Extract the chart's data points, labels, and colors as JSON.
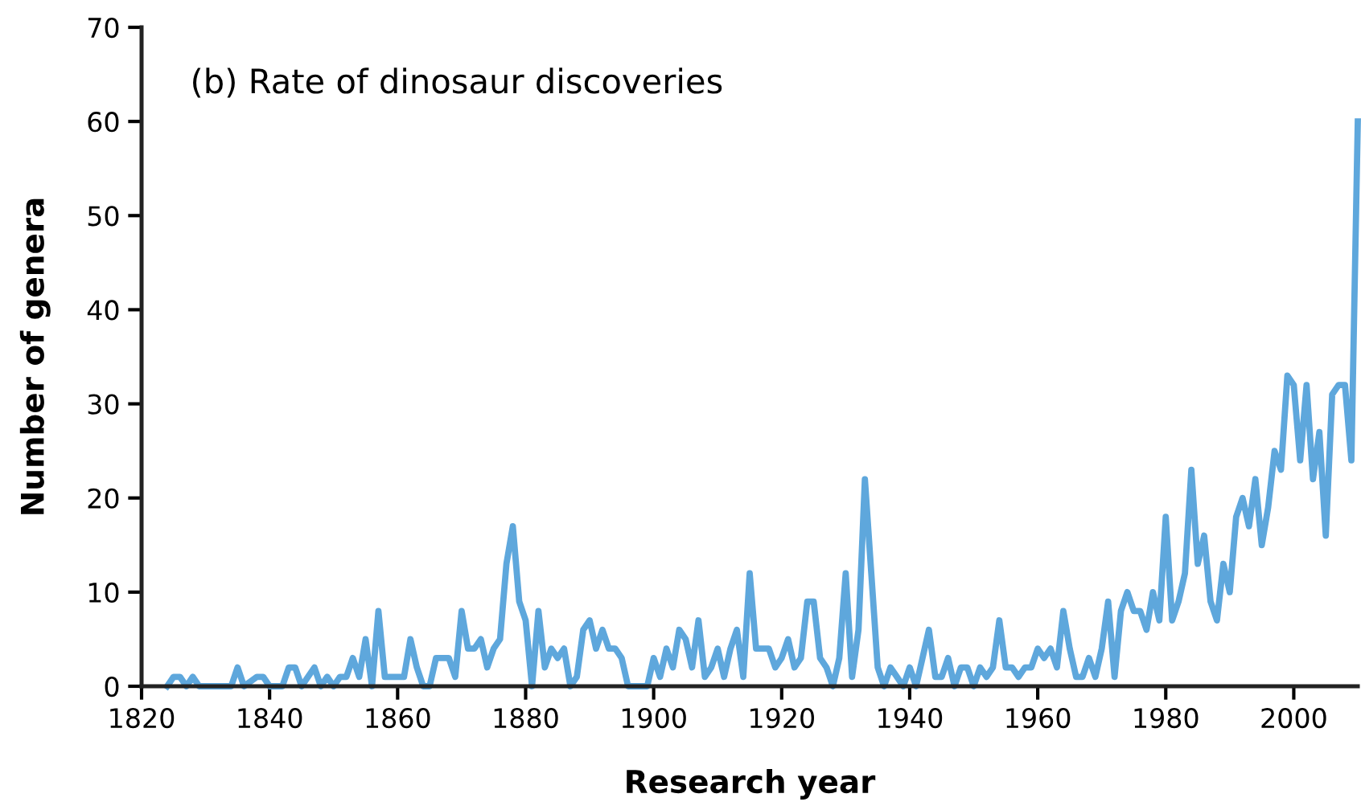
{
  "chart_data": {
    "type": "line",
    "title": "(b) Rate of dinosaur discoveries",
    "xlabel": "Research year",
    "ylabel": "Number of genera",
    "x": [
      1824,
      1825,
      1826,
      1827,
      1828,
      1829,
      1834,
      1835,
      1836,
      1838,
      1839,
      1840,
      1842,
      1843,
      1844,
      1845,
      1847,
      1848,
      1849,
      1850,
      1851,
      1852,
      1853,
      1854,
      1855,
      1856,
      1857,
      1858,
      1859,
      1861,
      1862,
      1863,
      1864,
      1865,
      1866,
      1868,
      1869,
      1870,
      1871,
      1872,
      1873,
      1874,
      1875,
      1876,
      1877,
      1878,
      1879,
      1880,
      1881,
      1882,
      1883,
      1884,
      1885,
      1886,
      1887,
      1888,
      1889,
      1890,
      1891,
      1892,
      1893,
      1894,
      1895,
      1896,
      1899,
      1900,
      1901,
      1902,
      1903,
      1904,
      1905,
      1906,
      1907,
      1908,
      1909,
      1910,
      1911,
      1912,
      1913,
      1914,
      1915,
      1916,
      1917,
      1918,
      1919,
      1920,
      1921,
      1922,
      1923,
      1924,
      1925,
      1926,
      1927,
      1928,
      1929,
      1930,
      1931,
      1932,
      1933,
      1934,
      1935,
      1936,
      1937,
      1938,
      1939,
      1940,
      1941,
      1942,
      1943,
      1944,
      1945,
      1946,
      1947,
      1948,
      1949,
      1950,
      1951,
      1952,
      1953,
      1954,
      1955,
      1956,
      1957,
      1958,
      1959,
      1960,
      1961,
      1962,
      1963,
      1964,
      1965,
      1966,
      1967,
      1968,
      1969,
      1970,
      1971,
      1972,
      1973,
      1974,
      1975,
      1976,
      1977,
      1978,
      1979,
      1980,
      1981,
      1982,
      1983,
      1984,
      1985,
      1986,
      1987,
      1988,
      1989,
      1990,
      1991,
      1992,
      1993,
      1994,
      1995,
      1996,
      1997,
      1998,
      1999,
      2000,
      2001,
      2002,
      2003,
      2004,
      2005,
      2006,
      2007,
      2008,
      2009,
      2010
    ],
    "series": [
      {
        "color": "#5ea7dc",
        "values": [
          0,
          1,
          1,
          0,
          1,
          0,
          0,
          2,
          0,
          1,
          1,
          0,
          0,
          2,
          2,
          0,
          2,
          0,
          1,
          0,
          1,
          1,
          3,
          1,
          5,
          0,
          8,
          1,
          1,
          1,
          5,
          2,
          0,
          0,
          3,
          3,
          1,
          8,
          4,
          4,
          5,
          2,
          4,
          5,
          13,
          17,
          9,
          7,
          0,
          8,
          2,
          4,
          3,
          4,
          0,
          1,
          6,
          7,
          4,
          6,
          4,
          4,
          3,
          0,
          0,
          3,
          1,
          4,
          2,
          6,
          5,
          2,
          7,
          1,
          2,
          4,
          1,
          4,
          6,
          1,
          12,
          4,
          4,
          4,
          2,
          3,
          5,
          2,
          3,
          9,
          9,
          3,
          2,
          0,
          3,
          12,
          1,
          6,
          22,
          12,
          2,
          0,
          2,
          1,
          0,
          2,
          0,
          3,
          6,
          1,
          1,
          3,
          0,
          2,
          2,
          0,
          2,
          1,
          2,
          7,
          2,
          2,
          1,
          2,
          2,
          4,
          3,
          4,
          2,
          8,
          4,
          1,
          1,
          3,
          1,
          4,
          9,
          1,
          8,
          10,
          8,
          8,
          6,
          10,
          7,
          18,
          7,
          9,
          12,
          23,
          13,
          16,
          9,
          7,
          13,
          10,
          18,
          20,
          17,
          22,
          15,
          19,
          25,
          23,
          33,
          32,
          24,
          32,
          22,
          27,
          16,
          31,
          32,
          32,
          24,
          60
        ]
      }
    ],
    "xlim": [
      1820,
      2010
    ],
    "xticks": [
      1820,
      1840,
      1860,
      1880,
      1900,
      1920,
      1940,
      1960,
      1980,
      2000
    ],
    "ylim": [
      0,
      70
    ],
    "yticks": [
      0,
      10,
      20,
      30,
      40,
      50,
      60,
      70
    ],
    "grid": false,
    "marker": "none",
    "line_style": "solid"
  }
}
